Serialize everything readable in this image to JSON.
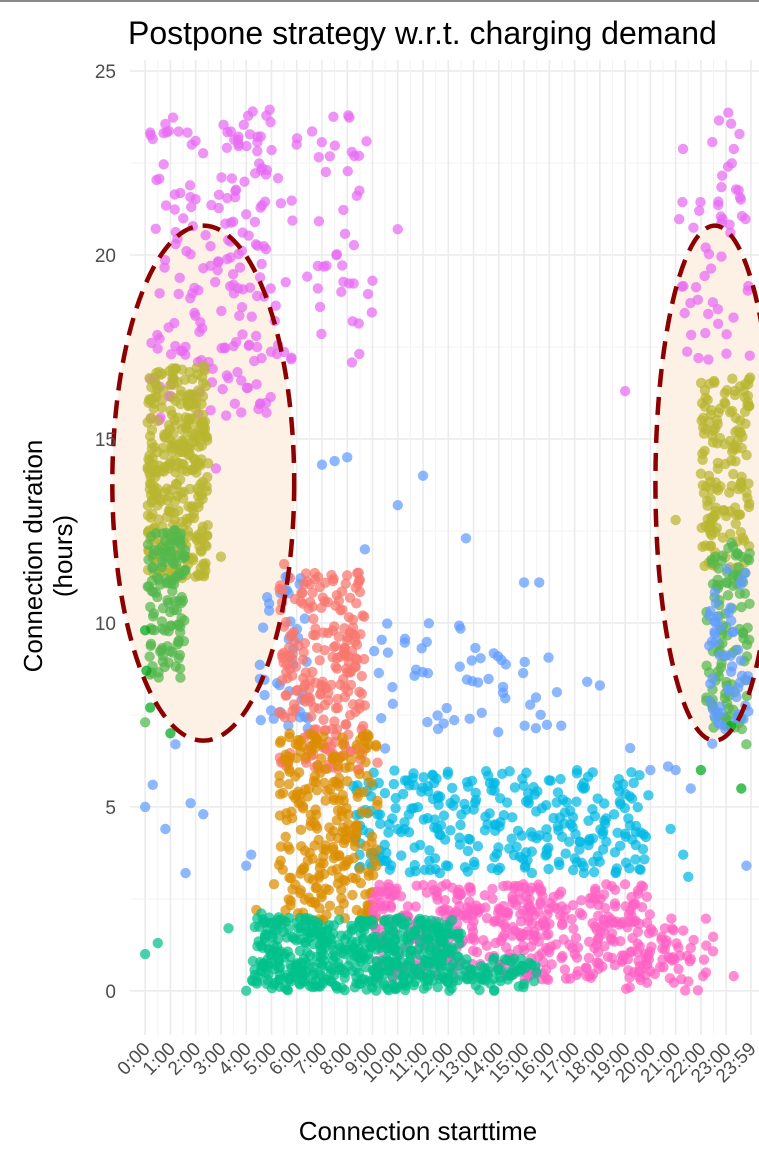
{
  "chart_data": {
    "type": "scatter",
    "title": "Postpone strategy w.r.t. charging demand",
    "xlabel": "Connection starttime",
    "ylabel": [
      "Connection duration",
      "(hours)"
    ],
    "xlim_hours": [
      -0.6,
      24.3
    ],
    "ylim": [
      -1.2,
      25.3
    ],
    "y_ticks": [
      0,
      5,
      10,
      15,
      20,
      25
    ],
    "x_ticks": [
      "0:00",
      "1:00",
      "2:00",
      "3:00",
      "4:00",
      "5:00",
      "6:00",
      "7:00",
      "8:00",
      "9:00",
      "10:00",
      "11:00",
      "12:00",
      "13:00",
      "14:00",
      "15:00",
      "16:00",
      "17:00",
      "18:00",
      "19:00",
      "20:00",
      "21:00",
      "22:00",
      "23:00",
      "23:59"
    ],
    "x_tick_hours": [
      0,
      1,
      2,
      3,
      4,
      5,
      6,
      7,
      8,
      9,
      10,
      11,
      12,
      13,
      14,
      15,
      16,
      17,
      18,
      19,
      20,
      21,
      22,
      23,
      23.983
    ],
    "grid": true,
    "legend": "none",
    "series": [
      {
        "color": "#e76bf3",
        "clusters": [
          {
            "x": [
              0.2,
              5.0
            ],
            "y": [
              15.5,
              24.0
            ],
            "n": 190
          },
          {
            "x": [
              5.0,
              9.0
            ],
            "y": [
              17.0,
              24.0
            ],
            "n": 55
          },
          {
            "x": [
              21.0,
              23.95
            ],
            "y": [
              17.0,
              24.0
            ],
            "n": 55
          }
        ],
        "points": [
          [
            10.0,
            20.7
          ],
          [
            19.0,
            16.3
          ],
          [
            9.0,
            19.3
          ],
          [
            2.8,
            14.2
          ]
        ]
      },
      {
        "color": "#b9b531",
        "clusters": [
          {
            "x": [
              0.1,
              2.5
            ],
            "y": [
              11.2,
              17.0
            ],
            "n": 330
          },
          {
            "x": [
              22.0,
              23.95
            ],
            "y": [
              11.5,
              16.7
            ],
            "n": 150
          }
        ],
        "points": [
          [
            2.3,
            11.6
          ],
          [
            3.0,
            11.8
          ],
          [
            21.0,
            12.8
          ]
        ]
      },
      {
        "color": "#53b74c",
        "clusters": [
          {
            "x": [
              0.1,
              1.6
            ],
            "y": [
              8.5,
              12.6
            ],
            "n": 120
          },
          {
            "x": [
              22.2,
              23.95
            ],
            "y": [
              7.0,
              12.3
            ],
            "n": 110
          }
        ],
        "points": [
          [
            0.0,
            7.3
          ],
          [
            0.2,
            8.6
          ],
          [
            23.8,
            6.7
          ]
        ]
      },
      {
        "color": "#00a91f",
        "clusters": [],
        "points": [
          [
            0.0,
            9.8
          ],
          [
            0.05,
            8.7
          ],
          [
            0.2,
            7.7
          ],
          [
            1.0,
            7.0
          ],
          [
            23.6,
            5.5
          ],
          [
            22.0,
            6.0
          ],
          [
            23.2,
            7.2
          ]
        ]
      },
      {
        "color": "#619cff",
        "clusters": [
          {
            "x": [
              4.5,
              6.5
            ],
            "y": [
              7.0,
              11.5
            ],
            "n": 40
          },
          {
            "x": [
              22.3,
              23.9
            ],
            "y": [
              6.7,
              11.5
            ],
            "n": 55
          },
          {
            "x": [
              9.0,
              16.5
            ],
            "y": [
              6.5,
              10.0
            ],
            "n": 55
          }
        ],
        "points": [
          [
            0.0,
            5.0
          ],
          [
            0.3,
            5.6
          ],
          [
            0.8,
            4.4
          ],
          [
            1.2,
            6.7
          ],
          [
            2.3,
            4.8
          ],
          [
            4.0,
            3.4
          ],
          [
            4.2,
            3.7
          ],
          [
            7.0,
            14.3
          ],
          [
            7.5,
            14.4
          ],
          [
            8.0,
            14.5
          ],
          [
            8.7,
            12.0
          ],
          [
            10.0,
            13.2
          ],
          [
            11.0,
            14.0
          ],
          [
            12.7,
            12.3
          ],
          [
            15.0,
            11.1
          ],
          [
            15.6,
            11.1
          ],
          [
            17.5,
            8.4
          ],
          [
            18.0,
            8.3
          ],
          [
            19.2,
            6.6
          ],
          [
            20.0,
            6.0
          ],
          [
            20.7,
            6.1
          ],
          [
            21.0,
            6.0
          ],
          [
            21.6,
            5.5
          ],
          [
            23.8,
            3.4
          ],
          [
            1.6,
            3.2
          ],
          [
            1.8,
            5.1
          ]
        ]
      },
      {
        "color": "#f8766d",
        "clusters": [
          {
            "x": [
              5.3,
              8.7
            ],
            "y": [
              6.0,
              11.4
            ],
            "n": 240
          }
        ],
        "points": [
          [
            9.2,
            6.2
          ],
          [
            5.5,
            11.6
          ]
        ]
      },
      {
        "color": "#00b9e3",
        "clusters": [
          {
            "x": [
              8.2,
              20.0
            ],
            "y": [
              3.2,
              6.0
            ],
            "n": 300
          }
        ],
        "points": [
          [
            20.8,
            4.4
          ],
          [
            21.3,
            3.7
          ],
          [
            21.5,
            3.1
          ]
        ]
      },
      {
        "color": "#db8e00",
        "clusters": [
          {
            "x": [
              5.3,
              9.2
            ],
            "y": [
              1.8,
              7.0
            ],
            "n": 260
          }
        ],
        "points": [
          [
            4.4,
            2.2
          ],
          [
            5.1,
            2.9
          ]
        ]
      },
      {
        "color": "#ff61c3",
        "clusters": [
          {
            "x": [
              9.0,
              20.0
            ],
            "y": [
              0.3,
              2.9
            ],
            "n": 440
          },
          {
            "x": [
              19.0,
              22.5
            ],
            "y": [
              0.0,
              2.0
            ],
            "n": 60
          }
        ],
        "points": [
          [
            22.2,
            0.5
          ],
          [
            23.3,
            0.4
          ]
        ]
      },
      {
        "color": "#00c08b",
        "clusters": [
          {
            "x": [
              4.2,
              12.5
            ],
            "y": [
              0.0,
              2.0
            ],
            "n": 500
          },
          {
            "x": [
              12.5,
              15.5
            ],
            "y": [
              0.0,
              0.9
            ],
            "n": 60
          }
        ],
        "points": [
          [
            0.0,
            1.0
          ],
          [
            0.5,
            1.3
          ],
          [
            3.3,
            1.7
          ],
          [
            4.0,
            0.0
          ],
          [
            4.6,
            2.1
          ]
        ]
      }
    ],
    "annotations": [
      {
        "shape": "dashed-ellipse",
        "cx_hour": 2.3,
        "cy": 13.8,
        "rx_hours": 3.6,
        "ry": 7.0
      },
      {
        "shape": "dashed-ellipse",
        "cx_hour": 22.55,
        "cy": 13.8,
        "rx_hours": 2.35,
        "ry": 7.0
      }
    ],
    "colors": {
      "ellipse_stroke": "#8b0000",
      "ellipse_fill": "#fdf0e4",
      "grid_major": "#ebebeb",
      "grid_minor": "#f3f3f3",
      "tick_text": "#4d4d4d"
    }
  }
}
